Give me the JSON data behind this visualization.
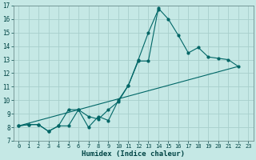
{
  "title": "",
  "xlabel": "Humidex (Indice chaleur)",
  "ylabel": "",
  "background_color": "#c5e8e5",
  "grid_color": "#a8d0cc",
  "line_color": "#006666",
  "xlim": [
    -0.5,
    23.5
  ],
  "ylim": [
    7,
    17
  ],
  "xticks": [
    0,
    1,
    2,
    3,
    4,
    5,
    6,
    7,
    8,
    9,
    10,
    11,
    12,
    13,
    14,
    15,
    16,
    17,
    18,
    19,
    20,
    21,
    22,
    23
  ],
  "yticks": [
    7,
    8,
    9,
    10,
    11,
    12,
    13,
    14,
    15,
    16,
    17
  ],
  "line1_x": [
    0,
    1,
    2,
    3,
    4,
    5,
    6,
    7,
    8,
    9,
    10,
    11,
    12,
    13,
    14,
    15,
    16,
    17,
    18,
    19,
    20,
    21,
    22
  ],
  "line1_y": [
    8.1,
    8.2,
    8.2,
    7.7,
    8.1,
    9.3,
    9.3,
    8.8,
    8.6,
    9.3,
    9.9,
    11.1,
    12.9,
    12.9,
    16.8,
    16.0,
    14.8,
    13.5,
    13.9,
    13.2,
    13.1,
    13.0,
    12.5
  ],
  "line2_x": [
    0,
    1,
    2,
    3,
    4,
    5,
    6,
    7,
    8,
    9,
    10,
    11,
    12,
    13,
    14
  ],
  "line2_y": [
    8.1,
    8.2,
    8.2,
    7.7,
    8.1,
    8.1,
    9.3,
    8.0,
    8.8,
    8.5,
    10.0,
    11.1,
    13.0,
    15.0,
    16.7
  ],
  "line3_x": [
    0,
    22
  ],
  "line3_y": [
    8.1,
    12.5
  ]
}
